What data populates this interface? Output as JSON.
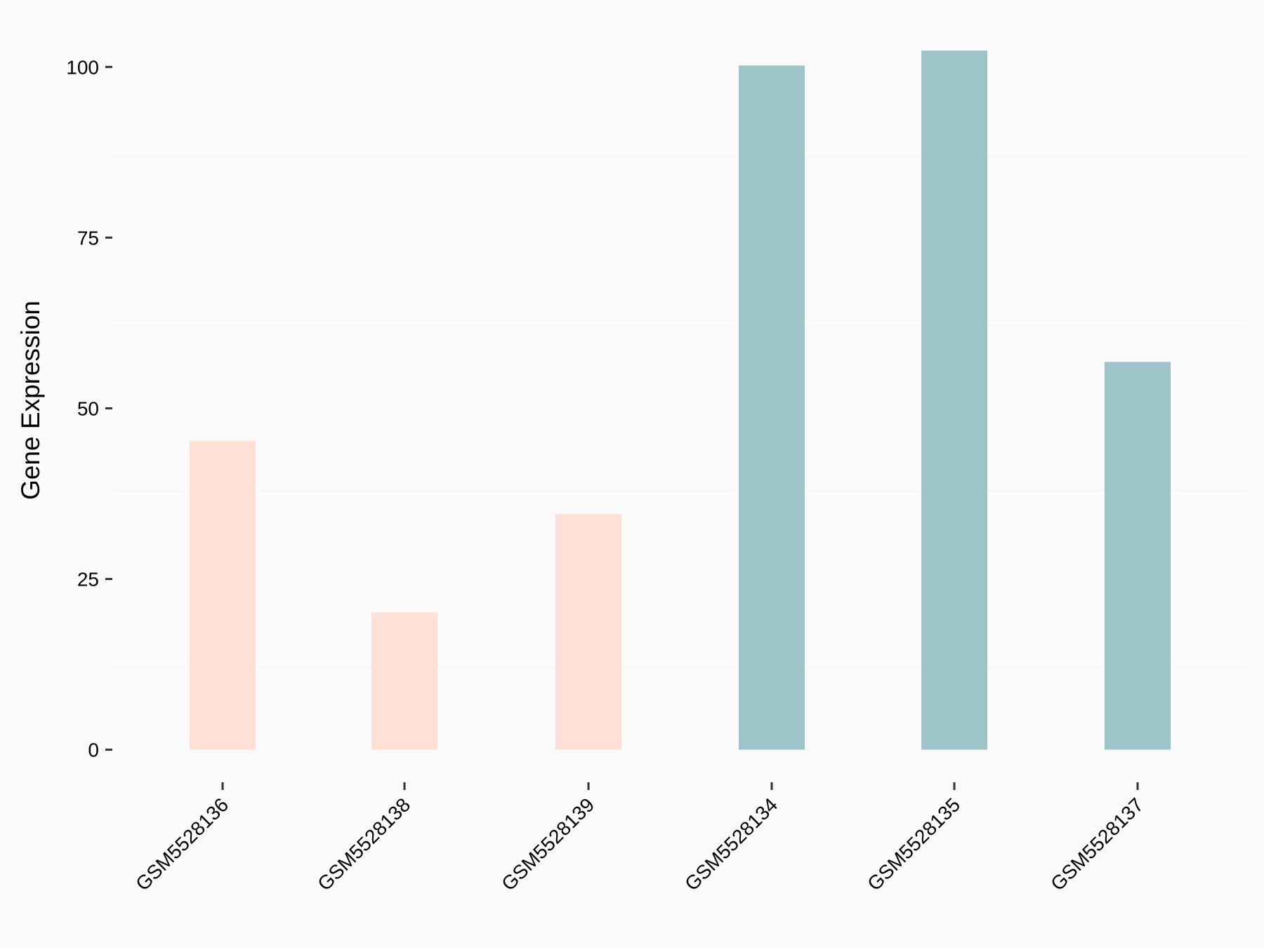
{
  "chart_data": {
    "type": "bar",
    "title": "",
    "xlabel": "",
    "ylabel": "Gene Expression",
    "categories": [
      "GSM5528136",
      "GSM5528138",
      "GSM5528139",
      "GSM5528134",
      "GSM5528135",
      "GSM5528137"
    ],
    "values": [
      45.2,
      20.1,
      34.5,
      100.2,
      102.4,
      56.8
    ],
    "bar_colors": [
      "#ffe0d6",
      "#ffe0d6",
      "#ffe0d6",
      "#9dc4c8",
      "#9dc4c8",
      "#9dc4c8"
    ],
    "ylim": [
      0,
      105
    ],
    "yticks": [
      0,
      25,
      50,
      75,
      100
    ],
    "ytick_labels": [
      "0",
      "25",
      "50",
      "75",
      "100"
    ],
    "grid": "minor horizontal only",
    "legend": "none",
    "background": "#fafafa"
  }
}
